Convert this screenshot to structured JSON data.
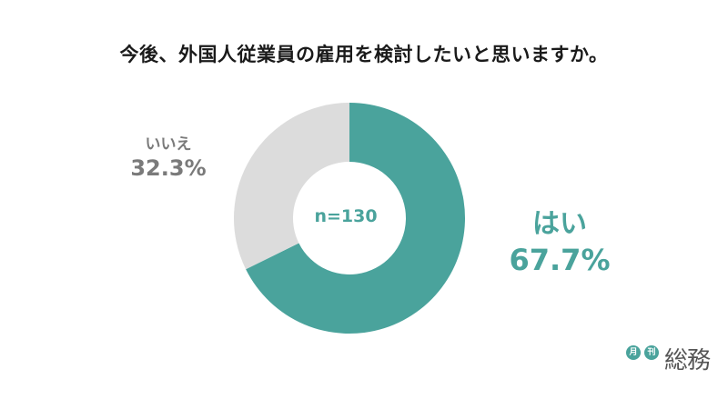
{
  "title": "今後、外国人従業員の雇用を検討したいと思いますか。",
  "center_label": "n=130",
  "logo": {
    "badge1": "月",
    "badge2": "刊",
    "brand": "総務"
  },
  "colors": {
    "yes": "#4aa39c",
    "no": "#dcdcdc",
    "no_label": "#7a7a7a"
  },
  "chart_data": {
    "type": "pie",
    "title": "今後、外国人従業員の雇用を検討したいと思いますか。",
    "categories": [
      "はい",
      "いいえ"
    ],
    "values": [
      67.7,
      32.3
    ],
    "value_labels": [
      "67.7%",
      "32.3%"
    ],
    "sample": "n=130",
    "style": "donut"
  }
}
